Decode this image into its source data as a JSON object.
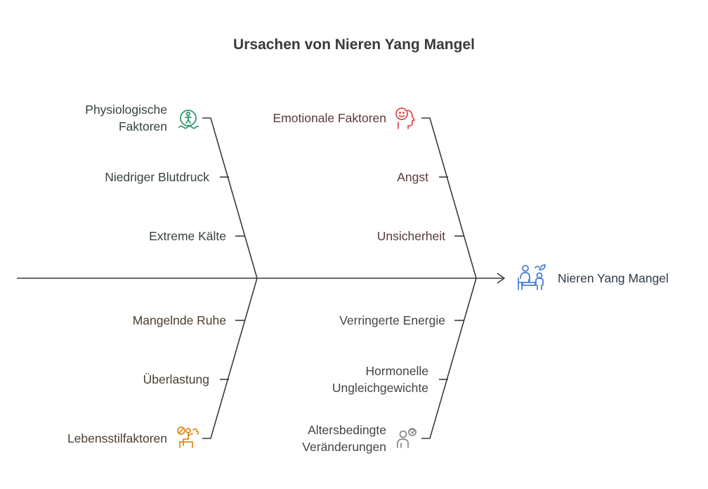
{
  "title": "Ursachen von Nieren Yang Mangel",
  "outcome": {
    "label": "Nieren Yang Mangel",
    "icon": "people-plant-icon",
    "color": "#4a7fd6"
  },
  "categories": [
    {
      "name": "Physiologische Faktoren",
      "lines": [
        "Physiologische",
        "Faktoren"
      ],
      "icon": "person-swimming-icon",
      "color": "#2e9b6e",
      "causes": [
        "Niedriger Blutdruck",
        "Extreme Kälte"
      ]
    },
    {
      "name": "Emotionale Faktoren",
      "lines": [
        "Emotionale Faktoren"
      ],
      "icon": "emotional-head-icon",
      "color": "#e0504f",
      "causes": [
        "Angst",
        "Unsicherheit"
      ]
    },
    {
      "name": "Lebensstilfaktoren",
      "lines": [
        "Lebensstilfaktoren"
      ],
      "icon": "lifestyle-person-icon",
      "color": "#e08a1e",
      "causes": [
        "Mangelnde Ruhe",
        "Überlastung"
      ]
    },
    {
      "name": "Altersbedingte Veränderungen",
      "lines": [
        "Altersbedingte",
        "Veränderungen"
      ],
      "icon": "aging-person-icon",
      "color": "#8c8c8c",
      "causes": [
        "Verringerte Energie",
        "Hormonelle Ungleichgewichte"
      ],
      "cause_lines": [
        [
          "Verringerte Energie"
        ],
        [
          "Hormonelle",
          "Ungleichgewichte"
        ]
      ]
    }
  ]
}
